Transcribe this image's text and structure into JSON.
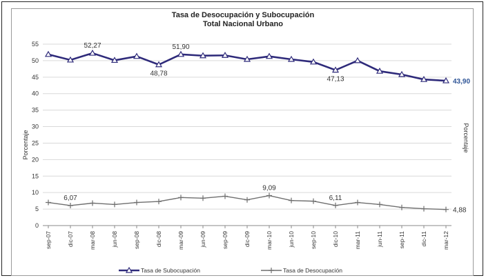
{
  "chart_data": {
    "type": "line",
    "title": "Tasa de Desocupación y Subocupación",
    "subtitle": "Total Nacional Urbano",
    "ylabel_left": "Porcentaje",
    "ylabel_right": "Porcentaje",
    "ylim": [
      0,
      55
    ],
    "yticks": [
      "0",
      "5",
      "10",
      "15",
      "20",
      "25",
      "30",
      "35",
      "40",
      "45",
      "50",
      "55"
    ],
    "grid": true,
    "legend_position": "bottom",
    "categories": [
      "sep-07",
      "dic-07",
      "mar-08",
      "jun-08",
      "sep-08",
      "dic-08",
      "mar-09",
      "jun-09",
      "sep-09",
      "dic-09",
      "mar-10",
      "jun-10",
      "sep-10",
      "dic-10",
      "mar-11",
      "jun-11",
      "sep-11",
      "dic-11",
      "mar-12"
    ],
    "series": [
      {
        "name": "Tasa de Subocupación",
        "color": "#2e2a7a",
        "marker": "triangle",
        "values": [
          51.9,
          50.2,
          52.27,
          50.1,
          51.3,
          48.78,
          51.9,
          51.5,
          51.6,
          50.4,
          51.3,
          50.4,
          49.6,
          47.13,
          50.0,
          46.8,
          45.8,
          44.3,
          43.9
        ]
      },
      {
        "name": "Tasa de Desocupación",
        "color": "#6e6e6e",
        "marker": "cross",
        "values": [
          7.0,
          6.07,
          6.8,
          6.4,
          7.0,
          7.3,
          8.5,
          8.3,
          8.9,
          7.8,
          9.09,
          7.6,
          7.4,
          6.11,
          7.0,
          6.4,
          5.5,
          5.1,
          4.88
        ]
      }
    ],
    "data_labels": [
      {
        "series": 0,
        "index": 2,
        "text": "52,27",
        "pos": "above"
      },
      {
        "series": 0,
        "index": 5,
        "text": "48,78",
        "pos": "below"
      },
      {
        "series": 0,
        "index": 6,
        "text": "51,90",
        "pos": "above"
      },
      {
        "series": 0,
        "index": 13,
        "text": "47,13",
        "pos": "below"
      },
      {
        "series": 0,
        "index": 18,
        "text": "43,90",
        "pos": "right"
      },
      {
        "series": 1,
        "index": 1,
        "text": "6,07",
        "pos": "above"
      },
      {
        "series": 1,
        "index": 10,
        "text": "9,09",
        "pos": "above"
      },
      {
        "series": 1,
        "index": 13,
        "text": "6,11",
        "pos": "above"
      },
      {
        "series": 1,
        "index": 18,
        "text": "4,88",
        "pos": "right"
      }
    ]
  }
}
